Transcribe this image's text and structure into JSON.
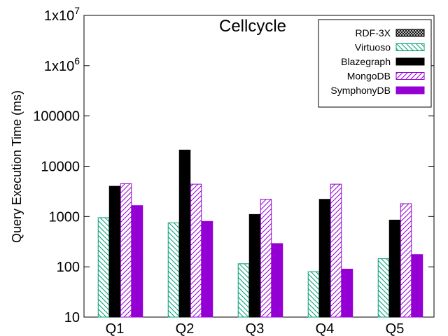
{
  "chart_data": {
    "type": "bar",
    "title": "Cellcycle",
    "xlabel": "",
    "ylabel": "Query Execution Time (ms)",
    "yscale": "log",
    "ylim": [
      10,
      10000000
    ],
    "yticks": [
      {
        "value": 10,
        "base": "10",
        "exp": ""
      },
      {
        "value": 100,
        "base": "100",
        "exp": ""
      },
      {
        "value": 1000,
        "base": "1000",
        "exp": ""
      },
      {
        "value": 10000,
        "base": "10000",
        "exp": ""
      },
      {
        "value": 100000,
        "base": "100000",
        "exp": ""
      },
      {
        "value": 1000000,
        "base": "1x10",
        "exp": "6"
      },
      {
        "value": 10000000,
        "base": "1x10",
        "exp": "7"
      }
    ],
    "categories": [
      "Q1",
      "Q2",
      "Q3",
      "Q4",
      "Q5"
    ],
    "legend_position": "top-right",
    "series": [
      {
        "name": "RDF-3X",
        "color": "#000000",
        "pattern": "crosshatch",
        "values": [
          null,
          null,
          null,
          null,
          null
        ]
      },
      {
        "name": "Virtuoso",
        "color": "#009e73",
        "pattern": "hatch-back",
        "values": [
          950,
          750,
          115,
          80,
          145
        ]
      },
      {
        "name": "Blazegraph",
        "color": "#000000",
        "pattern": "solid",
        "values": [
          4000,
          21000,
          1100,
          2200,
          850
        ]
      },
      {
        "name": "MongoDB",
        "color": "#9400d3",
        "pattern": "hatch-forward",
        "values": [
          4500,
          4400,
          2200,
          4400,
          1800
        ]
      },
      {
        "name": "SymphonyDB",
        "color": "#9400d3",
        "pattern": "solid",
        "values": [
          1650,
          800,
          290,
          90,
          175
        ]
      }
    ]
  }
}
